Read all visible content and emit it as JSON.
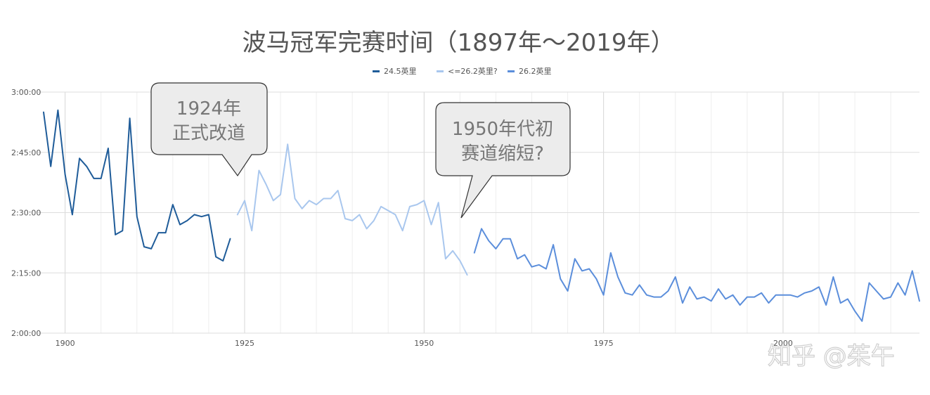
{
  "chart_data": {
    "type": "line",
    "title": "波马冠军完赛时间（1897年～2019年）",
    "xlabel": "",
    "ylabel": "",
    "xlim": [
      1897,
      2019
    ],
    "ylim": [
      120,
      180
    ],
    "x_ticks": [
      {
        "value": 1900,
        "label": "1900"
      },
      {
        "value": 1925,
        "label": "1925"
      },
      {
        "value": 1950,
        "label": "1950"
      },
      {
        "value": 1975,
        "label": "1975"
      },
      {
        "value": 2000,
        "label": "2000"
      }
    ],
    "y_ticks": [
      {
        "value": 120,
        "label": "2:00:00"
      },
      {
        "value": 135,
        "label": "2:15:00"
      },
      {
        "value": 150,
        "label": "2:30:00"
      },
      {
        "value": 165,
        "label": "2:45:00"
      },
      {
        "value": 180,
        "label": "3:00:00"
      }
    ],
    "y_unit": "minutes",
    "grid": true,
    "legend_position": "top",
    "series": [
      {
        "name": "24.5英里",
        "color": "#1f5c99",
        "x": [
          1897,
          1898,
          1899,
          1900,
          1901,
          1902,
          1903,
          1904,
          1905,
          1906,
          1907,
          1908,
          1909,
          1910,
          1911,
          1912,
          1913,
          1914,
          1915,
          1916,
          1917,
          1918,
          1919,
          1920,
          1921,
          1922,
          1923
        ],
        "y": [
          175,
          161.5,
          175.5,
          159.5,
          149.5,
          163.5,
          161.5,
          158.5,
          158.5,
          166,
          144.5,
          145.5,
          173.5,
          149,
          141.5,
          141,
          145,
          145,
          152,
          147,
          148,
          149.5,
          149,
          149.5,
          139,
          138,
          143.5
        ]
      },
      {
        "name": "<=26.2英里?",
        "color": "#a9c7ee",
        "x": [
          1924,
          1925,
          1926,
          1927,
          1928,
          1929,
          1930,
          1931,
          1932,
          1933,
          1934,
          1935,
          1936,
          1937,
          1938,
          1939,
          1940,
          1941,
          1942,
          1943,
          1944,
          1945,
          1946,
          1947,
          1948,
          1949,
          1950,
          1951,
          1952,
          1953,
          1954,
          1955,
          1956
        ],
        "y": [
          149.5,
          153,
          145.5,
          160.5,
          157,
          153,
          154.5,
          167,
          153.5,
          151,
          153,
          152,
          153.5,
          153.5,
          155.5,
          148.5,
          148,
          149.5,
          146,
          148,
          151.5,
          150.5,
          149.5,
          145.5,
          151.5,
          152,
          153,
          147,
          152.5,
          138.5,
          140.5,
          138,
          134.5
        ]
      },
      {
        "name": "26.2英里",
        "color": "#5b8edb",
        "x": [
          1957,
          1958,
          1959,
          1960,
          1961,
          1962,
          1963,
          1964,
          1965,
          1966,
          1967,
          1968,
          1969,
          1970,
          1971,
          1972,
          1973,
          1974,
          1975,
          1976,
          1977,
          1978,
          1979,
          1980,
          1981,
          1982,
          1983,
          1984,
          1985,
          1986,
          1987,
          1988,
          1989,
          1990,
          1991,
          1992,
          1993,
          1994,
          1995,
          1996,
          1997,
          1998,
          1999,
          2000,
          2001,
          2002,
          2003,
          2004,
          2005,
          2006,
          2007,
          2008,
          2009,
          2010,
          2011,
          2012,
          2013,
          2014,
          2015,
          2016,
          2017,
          2018,
          2019
        ],
        "y": [
          140,
          146,
          143,
          141,
          143.5,
          143.5,
          138.5,
          139.5,
          136.5,
          137,
          136,
          142,
          133.5,
          130.5,
          138.5,
          135.5,
          136,
          133.5,
          129.5,
          140,
          134,
          130,
          129.5,
          132,
          129.5,
          129,
          129,
          130.5,
          134,
          127.5,
          131.5,
          128.5,
          129,
          128,
          131,
          128.5,
          129.5,
          127,
          129,
          129,
          130,
          127.5,
          129.5,
          129.5,
          129.5,
          129,
          130,
          130.5,
          131.5,
          127,
          134,
          127.5,
          128.5,
          125.5,
          123,
          132.5,
          130.5,
          128.5,
          129,
          132.5,
          129.5,
          135.5,
          128
        ]
      }
    ],
    "annotations": [
      {
        "text_lines": [
          "1924年",
          "正式改道"
        ]
      },
      {
        "text_lines": [
          "1950年代初",
          "赛道缩短?"
        ]
      }
    ],
    "watermark": "知乎 @茱午"
  }
}
